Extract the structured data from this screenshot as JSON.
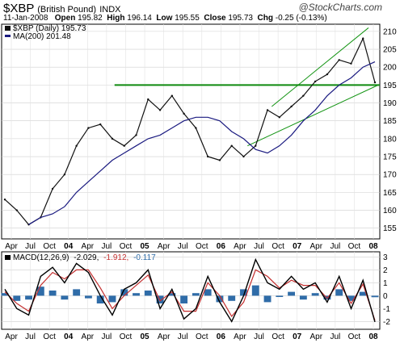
{
  "header": {
    "symbol": "$XBP",
    "name": "(British Pound)",
    "exchange": "INDX",
    "date": "11-Jan-2008",
    "open_label": "Open",
    "open": "195.82",
    "high_label": "High",
    "high": "196.14",
    "low_label": "Low",
    "low": "195.55",
    "close_label": "Close",
    "close": "195.73",
    "chg_label": "Chg",
    "chg": "-0.25 (-0.13%)",
    "brand": "@StockCharts.com"
  },
  "legend": {
    "price": "$XBP (Daily) 195.73",
    "ma": "MA(200) 201.48",
    "macd_label": "MACD(12,26,9)",
    "macd_val": "-2.029,",
    "signal_val": "-1.912,",
    "hist_val": "-0.117"
  },
  "colors": {
    "price": "#111111",
    "ma": "#1a1a80",
    "trend": "#139413",
    "support": "#0f8a0f",
    "macd": "#000000",
    "signal": "#c43030",
    "histogram": "#2f6ca8"
  },
  "chart_data": [
    {
      "type": "line",
      "title": "$XBP (British Pound) INDX",
      "ylim": [
        152,
        212
      ],
      "yticks": [
        155,
        160,
        165,
        170,
        175,
        180,
        185,
        190,
        195,
        200,
        205,
        210
      ],
      "xlabels": [
        "Apr",
        "Jul",
        "Oct",
        "04",
        "Apr",
        "Jul",
        "Oct",
        "05",
        "Apr",
        "Jul",
        "Oct",
        "06",
        "Apr",
        "Jul",
        "Oct",
        "07",
        "Apr",
        "Jul",
        "Oct",
        "08"
      ],
      "x": [
        "2003-01",
        "2003-03",
        "2003-05",
        "2003-07",
        "2003-09",
        "2003-11",
        "2004-01",
        "2004-02",
        "2004-04",
        "2004-06",
        "2004-08",
        "2004-10",
        "2004-12",
        "2005-01",
        "2005-03",
        "2005-05",
        "2005-07",
        "2005-09",
        "2005-11",
        "2006-01",
        "2006-03",
        "2006-05",
        "2006-07",
        "2006-09",
        "2006-11",
        "2007-01",
        "2007-03",
        "2007-05",
        "2007-07",
        "2007-09",
        "2007-11",
        "2008-01"
      ],
      "series": [
        {
          "name": "$XBP (Daily)",
          "values": [
            163,
            160,
            156,
            158,
            166,
            170,
            178,
            183,
            184,
            180,
            178,
            181,
            191,
            188,
            192,
            187,
            183,
            175,
            174,
            178,
            175,
            178,
            188,
            186,
            189,
            192,
            196,
            198,
            202,
            201,
            208,
            195.73
          ]
        },
        {
          "name": "MA(200)",
          "values": [
            null,
            null,
            156,
            158,
            159,
            161,
            165,
            168,
            171,
            174,
            176,
            178,
            180,
            181,
            183,
            185,
            186,
            186,
            185,
            182,
            180,
            177,
            176,
            178,
            181,
            185,
            188,
            192,
            195,
            197,
            200,
            201.48
          ]
        }
      ],
      "support_level": 195,
      "channel": {
        "lower_start": 178,
        "lower_end": 195,
        "upper_start": 189,
        "upper_end": 211
      }
    },
    {
      "type": "line",
      "title": "MACD(12,26,9)",
      "ylim": [
        -2.6,
        3.4
      ],
      "yticks": [
        -2,
        -1,
        0,
        1,
        2,
        3
      ],
      "xlabels": [
        "Apr",
        "Jul",
        "Oct",
        "04",
        "Apr",
        "Jul",
        "Oct",
        "05",
        "Apr",
        "Jul",
        "Oct",
        "06",
        "Apr",
        "Jul",
        "Oct",
        "07",
        "Apr",
        "Jul",
        "Oct",
        "08"
      ],
      "x": [
        "2003-01",
        "2003-03",
        "2003-05",
        "2003-07",
        "2003-09",
        "2003-11",
        "2004-01",
        "2004-02",
        "2004-04",
        "2004-06",
        "2004-08",
        "2004-10",
        "2004-12",
        "2005-01",
        "2005-03",
        "2005-05",
        "2005-07",
        "2005-09",
        "2005-11",
        "2006-01",
        "2006-03",
        "2006-05",
        "2006-07",
        "2006-09",
        "2006-11",
        "2007-01",
        "2007-03",
        "2007-05",
        "2007-07",
        "2007-09",
        "2007-11",
        "2008-01"
      ],
      "series": [
        {
          "name": "MACD",
          "values": [
            0.5,
            -1,
            -1.5,
            1.5,
            2.2,
            1,
            2.5,
            1.8,
            0,
            -1.5,
            0.5,
            1,
            2,
            -1,
            0.5,
            -1.8,
            -1,
            1.5,
            -0.5,
            -2,
            0,
            2.8,
            1,
            0.5,
            1.5,
            0.5,
            1,
            -0.5,
            1.5,
            -1,
            1.2,
            -2.029
          ]
        },
        {
          "name": "Signal",
          "values": [
            0.3,
            -0.6,
            -1.2,
            0.8,
            1.8,
            1.3,
            2,
            2,
            0.6,
            -1,
            0,
            0.8,
            1.6,
            -0.4,
            0.3,
            -1.2,
            -1.2,
            1,
            0,
            -1.6,
            -0.5,
            2,
            1.5,
            0.6,
            1.2,
            0.8,
            0.8,
            -0.2,
            1,
            -0.6,
            0.9,
            -1.912
          ]
        },
        {
          "name": "Histogram",
          "values": [
            0.2,
            -0.4,
            -0.3,
            0.7,
            0.4,
            -0.3,
            0.5,
            -0.2,
            -0.6,
            -0.5,
            0.5,
            0.2,
            0.4,
            -0.6,
            0.2,
            -0.6,
            0.2,
            0.5,
            -0.5,
            -0.4,
            0.5,
            0.8,
            -0.5,
            -0.1,
            0.3,
            -0.3,
            0.2,
            -0.3,
            0.5,
            -0.4,
            0.3,
            -0.117
          ]
        }
      ]
    }
  ]
}
